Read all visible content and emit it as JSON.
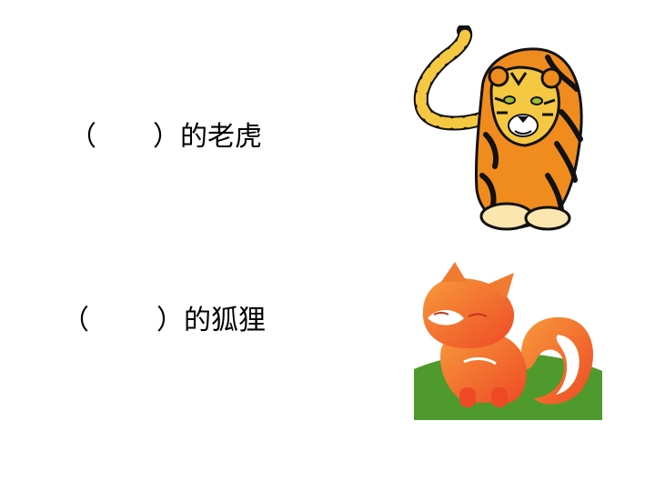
{
  "rows": [
    {
      "open": "（",
      "close": "）",
      "text": "的老虎"
    },
    {
      "open": "（",
      "close": "）",
      "text": "的狐狸"
    }
  ],
  "images": {
    "tiger": "tiger-illustration",
    "fox": "fox-illustration"
  },
  "colors": {
    "tiger_orange": "#f08c1e",
    "tiger_yellow": "#f5c842",
    "fox_orange": "#f26a2e",
    "grass_green": "#4f9a2c"
  }
}
